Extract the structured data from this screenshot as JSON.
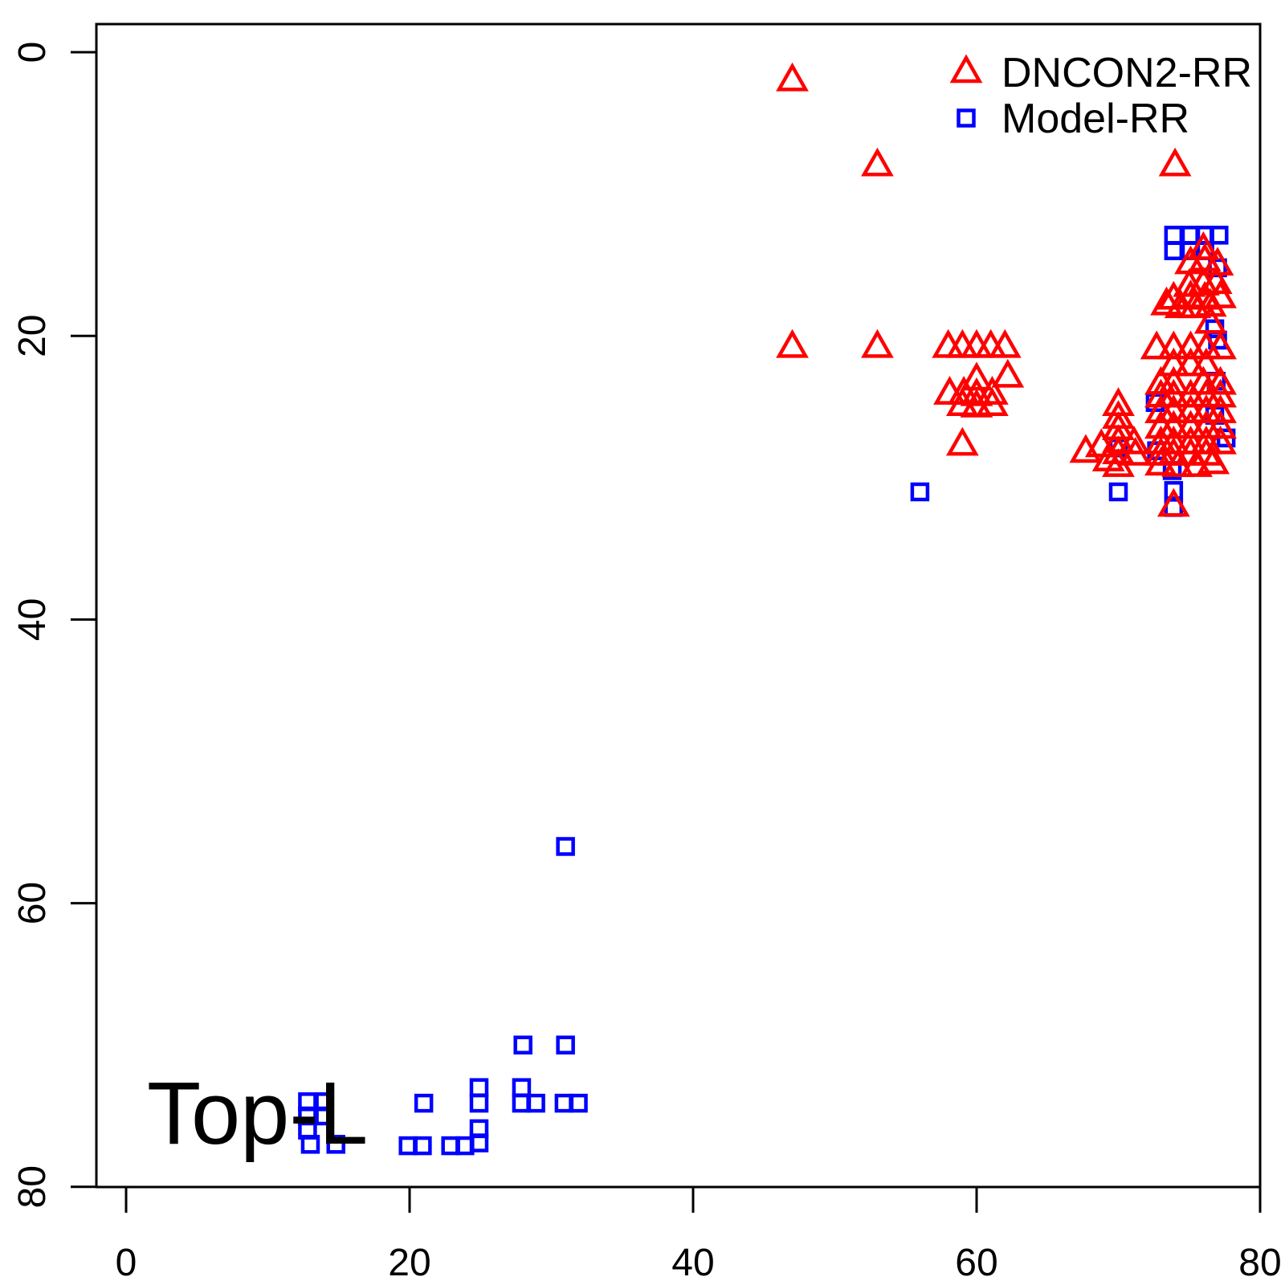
{
  "figure": {
    "background": "#FFFFFF"
  },
  "chart_data": {
    "type": "scatter",
    "title": "",
    "xlabel": "",
    "ylabel": "",
    "xlim": [
      0,
      80
    ],
    "ylim": [
      0,
      80
    ],
    "y_axis_reversed": true,
    "grid": false,
    "x_ticks": [
      "0",
      "20",
      "40",
      "60",
      "80"
    ],
    "x_tick_values": [
      0,
      20,
      40,
      60,
      80
    ],
    "y_ticks": [
      "0",
      "20",
      "40",
      "60",
      "80"
    ],
    "y_tick_values": [
      0,
      20,
      40,
      60,
      80
    ],
    "annotation": {
      "text": "Top-L",
      "color": "#000000"
    },
    "legend": {
      "position": "top-right",
      "entries": [
        {
          "label": "DNCON2-RR",
          "marker": "triangle",
          "color": "#FF0000"
        },
        {
          "label": "Model-RR",
          "marker": "square",
          "color": "#0000FF"
        }
      ]
    },
    "axis_color": "#000000",
    "series": [
      {
        "name": "DNCON2-RR",
        "marker": "triangle",
        "color": "#FF0000",
        "points": [
          [
            47,
            2
          ],
          [
            53,
            8
          ],
          [
            74,
            8
          ],
          [
            47,
            20.8
          ],
          [
            53,
            20.8
          ],
          [
            58,
            20.8
          ],
          [
            59,
            20.8
          ],
          [
            60,
            20.8
          ],
          [
            61,
            20.8
          ],
          [
            62,
            20.8
          ],
          [
            60,
            23.1
          ],
          [
            62.2,
            22.9
          ],
          [
            58.1,
            24.1
          ],
          [
            59.1,
            24.1
          ],
          [
            60,
            24.2
          ],
          [
            61.1,
            24.1
          ],
          [
            59,
            24.9
          ],
          [
            60,
            25
          ],
          [
            61.1,
            24.9
          ],
          [
            59,
            27.7
          ],
          [
            70,
            24.9
          ],
          [
            70,
            25.8
          ],
          [
            70,
            26.6
          ],
          [
            70,
            27.5
          ],
          [
            70,
            28.3
          ],
          [
            70,
            29.2
          ],
          [
            68.8,
            27.8
          ],
          [
            67.7,
            28.2
          ],
          [
            69.3,
            28.8
          ],
          [
            76,
            13.9
          ],
          [
            75.1,
            14.9
          ],
          [
            76.1,
            14.7
          ],
          [
            77,
            15
          ],
          [
            75,
            16.5
          ],
          [
            76,
            16.4
          ],
          [
            76.9,
            16.3
          ],
          [
            73.9,
            17.4
          ],
          [
            75.1,
            17.3
          ],
          [
            76.1,
            17.4
          ],
          [
            77.2,
            17.3
          ],
          [
            73.4,
            17.8
          ],
          [
            74.4,
            18
          ],
          [
            75.4,
            18
          ],
          [
            76.5,
            17.9
          ],
          [
            76.5,
            19.1
          ],
          [
            72.7,
            20.9
          ],
          [
            73.9,
            20.9
          ],
          [
            75.1,
            20.9
          ],
          [
            76.2,
            20.9
          ],
          [
            77.2,
            20.9
          ],
          [
            73.9,
            22.1
          ],
          [
            75.1,
            22.1
          ],
          [
            76.2,
            22.1
          ],
          [
            73,
            23.4
          ],
          [
            73.9,
            23.4
          ],
          [
            76,
            23.4
          ],
          [
            77.2,
            23.4
          ],
          [
            73,
            24.3
          ],
          [
            73.9,
            24.3
          ],
          [
            75.1,
            24.3
          ],
          [
            76.2,
            24.3
          ],
          [
            77.2,
            24.3
          ],
          [
            73,
            25.4
          ],
          [
            73.9,
            25.4
          ],
          [
            75.1,
            25.4
          ],
          [
            76.2,
            25.4
          ],
          [
            77.2,
            25.4
          ],
          [
            73,
            26.5
          ],
          [
            73.9,
            26.5
          ],
          [
            75.1,
            26.5
          ],
          [
            76.2,
            26.5
          ],
          [
            77.2,
            26.5
          ],
          [
            71.1,
            27.6
          ],
          [
            73,
            27.6
          ],
          [
            73.9,
            27.6
          ],
          [
            75.1,
            27.6
          ],
          [
            76.2,
            27.6
          ],
          [
            77.2,
            27.6
          ],
          [
            71.2,
            28.4
          ],
          [
            73,
            28.4
          ],
          [
            73.9,
            28.4
          ],
          [
            75.1,
            28.4
          ],
          [
            76.2,
            28.4
          ],
          [
            73,
            29.1
          ],
          [
            74.2,
            29.2
          ],
          [
            75.5,
            29.2
          ],
          [
            76.7,
            29
          ],
          [
            73.9,
            32
          ]
        ]
      },
      {
        "name": "Model-RR",
        "marker": "square",
        "color": "#0000FF",
        "points": [
          [
            31,
            56
          ],
          [
            56,
            31
          ],
          [
            28,
            70
          ],
          [
            31,
            70
          ],
          [
            12.8,
            74
          ],
          [
            14,
            74
          ],
          [
            12.8,
            75
          ],
          [
            14,
            75
          ],
          [
            12.8,
            76
          ],
          [
            13,
            77
          ],
          [
            14.8,
            77
          ],
          [
            21,
            74.1
          ],
          [
            24.9,
            73
          ],
          [
            24.9,
            74.1
          ],
          [
            27.9,
            73
          ],
          [
            27.9,
            74.1
          ],
          [
            28.9,
            74.1
          ],
          [
            30.9,
            74.1
          ],
          [
            31.9,
            74.1
          ],
          [
            24.9,
            75.9
          ],
          [
            24.9,
            76.9
          ],
          [
            19.9,
            77.1
          ],
          [
            20.9,
            77.1
          ],
          [
            22.9,
            77.1
          ],
          [
            23.9,
            77.1
          ],
          [
            73.9,
            12.9
          ],
          [
            75.1,
            12.9
          ],
          [
            76.1,
            12.9
          ],
          [
            77.1,
            12.9
          ],
          [
            73.9,
            14
          ],
          [
            75.1,
            14
          ],
          [
            76.1,
            14
          ],
          [
            77,
            15.2
          ],
          [
            76.8,
            19.5
          ],
          [
            77,
            20.3
          ],
          [
            76.9,
            23.2
          ],
          [
            72.6,
            24.7
          ],
          [
            76.8,
            25.6
          ],
          [
            77.6,
            27.2
          ],
          [
            70,
            27.9
          ],
          [
            72.7,
            28.1
          ],
          [
            73.8,
            29.5
          ],
          [
            70,
            31
          ],
          [
            73.9,
            30.9
          ],
          [
            73.9,
            32.1
          ]
        ]
      }
    ]
  }
}
